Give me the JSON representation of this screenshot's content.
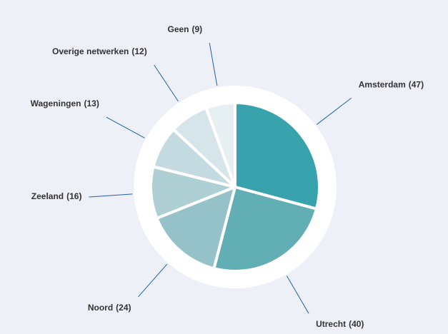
{
  "chart_data": {
    "type": "pie",
    "categories": [
      "Amsterdam",
      "Utrecht",
      "Noord",
      "Zeeland",
      "Wageningen",
      "Overige netwerken",
      "Geen"
    ],
    "values": [
      47,
      40,
      24,
      16,
      13,
      12,
      9
    ],
    "value_labels": [
      "(47)",
      "(40)",
      "(24)",
      "(16)",
      "(13)",
      "(12)",
      "(9)"
    ],
    "colors": [
      "#39a3ad",
      "#62aeb5",
      "#95c1c8",
      "#aecfd4",
      "#c3dbe0",
      "#d6e5e9",
      "#e6f0f2"
    ]
  }
}
